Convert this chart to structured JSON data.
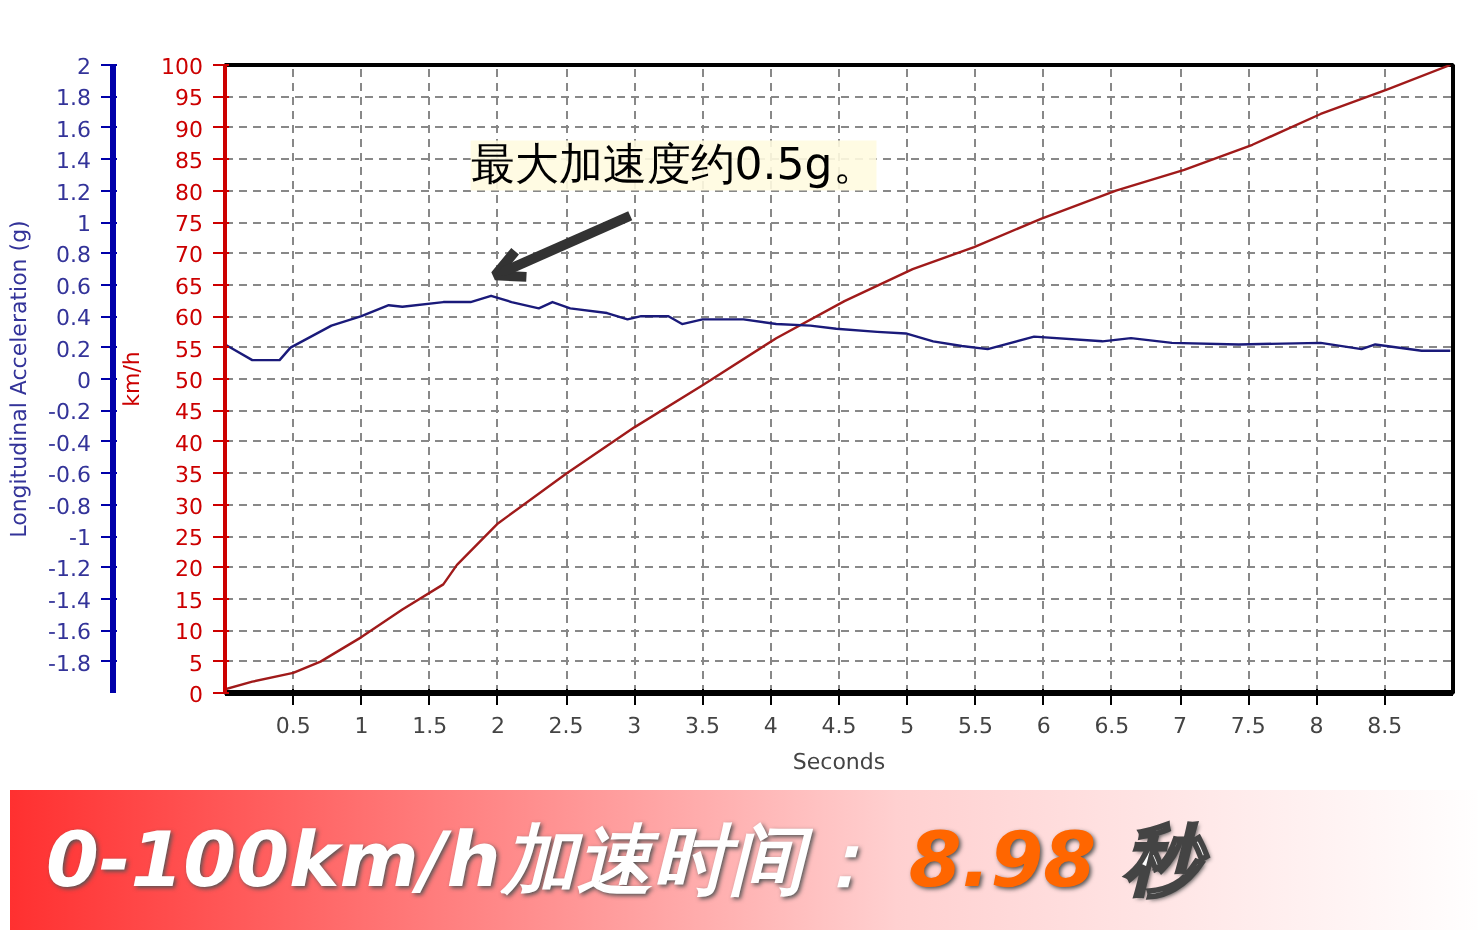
{
  "chart_data": {
    "type": "line",
    "xlabel": "Seconds",
    "ylabel": "km/h",
    "y2label": "Longitudinal Acceleration (g)",
    "xlim": [
      0,
      9
    ],
    "xticks": [
      0.5,
      1,
      1.5,
      2,
      2.5,
      3,
      3.5,
      4,
      4.5,
      5,
      5.5,
      6,
      6.5,
      7,
      7.5,
      8,
      8.5
    ],
    "ylim": [
      0,
      100
    ],
    "yticks": [
      0,
      5,
      10,
      15,
      20,
      25,
      30,
      35,
      40,
      45,
      50,
      55,
      60,
      65,
      70,
      75,
      80,
      85,
      90,
      95,
      100
    ],
    "y2lim": [
      -2,
      2
    ],
    "y2ticks": [
      -1.8,
      -1.6,
      -1.4,
      -1.2,
      -1,
      -0.8,
      -0.6,
      -0.4,
      -0.2,
      0,
      0.2,
      0.4,
      0.6,
      0.8,
      1,
      1.2,
      1.4,
      1.6,
      1.8,
      2
    ],
    "grid": true,
    "marker": "none",
    "line_style": "solid",
    "series": [
      {
        "color": "#a01a1a",
        "x": [
          0,
          0.2,
          0.5,
          0.7,
          1.0,
          1.3,
          1.6,
          1.7,
          2.0,
          2.5,
          3.0,
          3.5,
          4.04,
          4.54,
          5.04,
          5.49,
          5.98,
          6.53,
          7.03,
          7.53,
          8.03,
          8.52,
          8.98
        ],
        "values": [
          0.6,
          1.8,
          3.2,
          5,
          8.9,
          13.3,
          17.3,
          20.4,
          27,
          34.9,
          42.3,
          49,
          56.5,
          62.4,
          67.5,
          71,
          75.5,
          80,
          83.3,
          87.3,
          92.2,
          96.1,
          100
        ]
      },
      {
        "color": "#1a1a7a",
        "axis": "y2",
        "x": [
          0,
          0.2,
          0.4,
          0.48,
          0.78,
          1.0,
          1.2,
          1.3,
          1.6,
          1.8,
          1.95,
          2.1,
          2.3,
          2.4,
          2.53,
          2.8,
          2.95,
          3.05,
          3.25,
          3.35,
          3.5,
          3.8,
          4.04,
          4.29,
          4.48,
          4.78,
          4.99,
          5.19,
          5.4,
          5.59,
          5.93,
          6.43,
          6.64,
          6.94,
          7.43,
          8.03,
          8.33,
          8.43,
          8.77,
          8.98
        ],
        "values": [
          0.22,
          0.12,
          0.12,
          0.2,
          0.34,
          0.4,
          0.47,
          0.46,
          0.49,
          0.49,
          0.53,
          0.49,
          0.45,
          0.49,
          0.45,
          0.42,
          0.38,
          0.4,
          0.4,
          0.35,
          0.38,
          0.38,
          0.35,
          0.34,
          0.32,
          0.3,
          0.29,
          0.24,
          0.21,
          0.19,
          0.27,
          0.24,
          0.26,
          0.23,
          0.22,
          0.23,
          0.19,
          0.22,
          0.18,
          0.18
        ]
      }
    ],
    "annotations": [
      "最大加速度约0.5g。",
      "0-100km/h加速时间：",
      "8.98",
      "秒"
    ]
  }
}
